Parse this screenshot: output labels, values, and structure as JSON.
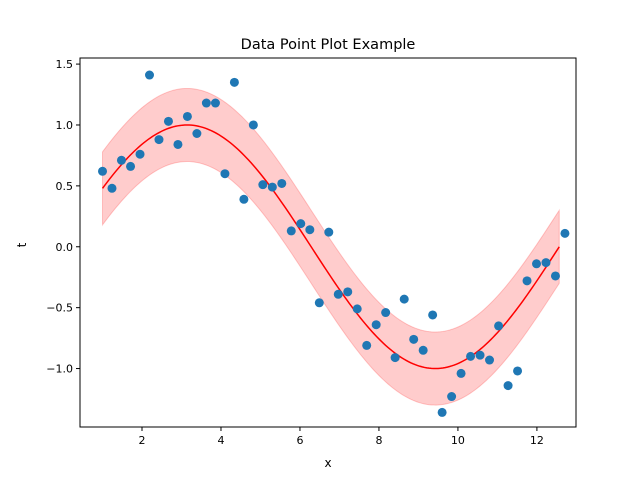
{
  "chart_data": {
    "type": "scatter",
    "title": "Data Point Plot Example",
    "xlabel": "x",
    "ylabel": "t",
    "xlim": [
      0.43,
      12.99
    ],
    "ylim": [
      -1.48,
      1.55
    ],
    "xticks": [
      2,
      4,
      6,
      8,
      10,
      12
    ],
    "xtick_labels": [
      "2",
      "4",
      "6",
      "8",
      "10",
      "12"
    ],
    "yticks": [
      -1.0,
      -0.5,
      0.0,
      0.5,
      1.0,
      1.5
    ],
    "ytick_labels": [
      "−1.0",
      "−0.5",
      "0.0",
      "0.5",
      "1.0",
      "1.5"
    ],
    "grid": false,
    "colors": {
      "points": "#1f77b4",
      "fit_line": "#ff0000",
      "band_fill": "#ff0000",
      "band_edge": "#ff0000"
    },
    "points": {
      "x": [
        1.0,
        1.24,
        1.48,
        1.71,
        1.95,
        2.19,
        2.43,
        2.67,
        2.91,
        3.15,
        3.39,
        3.63,
        3.86,
        4.1,
        4.34,
        4.58,
        4.82,
        5.06,
        5.3,
        5.54,
        5.78,
        6.02,
        6.25,
        6.49,
        6.73,
        6.97,
        7.21,
        7.45,
        7.69,
        7.93,
        8.17,
        8.41,
        8.64,
        8.88,
        9.12,
        9.36,
        9.6,
        9.84,
        10.08,
        10.32,
        10.56,
        10.8,
        11.03,
        11.27,
        11.51,
        11.75,
        11.99,
        12.23,
        12.47,
        12.71
      ],
      "y": [
        0.62,
        0.48,
        0.71,
        0.66,
        0.76,
        1.41,
        0.88,
        1.03,
        0.84,
        1.07,
        0.93,
        1.18,
        1.18,
        0.6,
        1.35,
        0.39,
        1.0,
        0.51,
        0.49,
        0.52,
        0.13,
        0.19,
        0.14,
        -0.46,
        0.12,
        -0.39,
        -0.37,
        -0.51,
        -0.81,
        -0.64,
        -0.54,
        -0.91,
        -0.43,
        -0.76,
        -0.85,
        -0.56,
        -1.36,
        -1.23,
        -1.04,
        -0.9,
        -0.89,
        -0.93,
        -0.65,
        -1.14,
        -1.02,
        -0.28,
        -0.14,
        -0.13,
        -0.24,
        0.11
      ]
    },
    "fit": {
      "x_range": [
        1.0,
        12.566
      ],
      "description": "sin(x/2)",
      "band_halfwidth": 0.3
    }
  }
}
